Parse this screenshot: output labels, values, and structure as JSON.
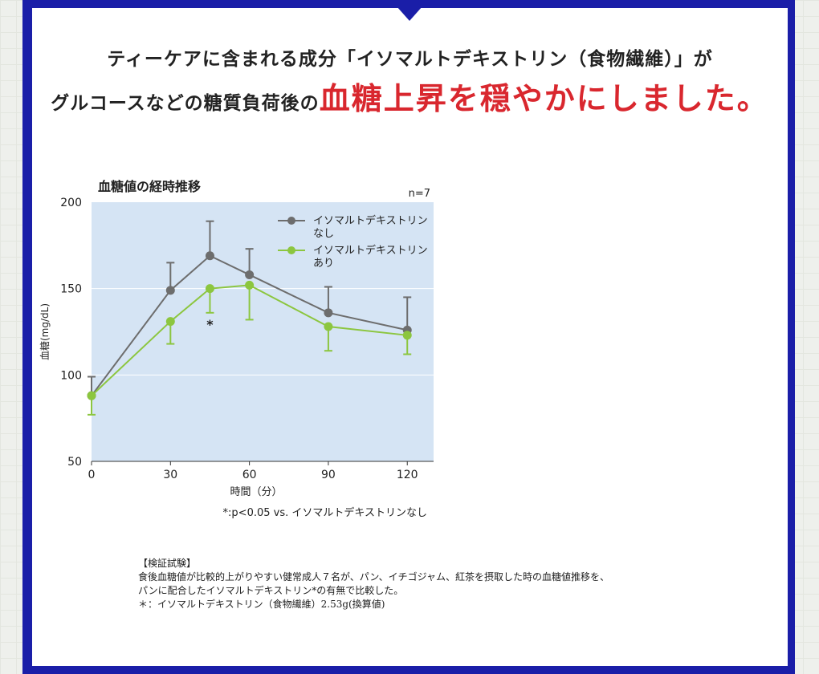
{
  "headline": {
    "line1": "ティーケアに含まれる成分「イソマルトデキストリン（食物繊維）」が",
    "line2_prefix": "グルコースなどの糖質負荷後の",
    "line2_highlight": "血糖上昇を穏やかにしました。"
  },
  "chart_data": {
    "type": "line",
    "title": "血糖値の経時推移",
    "annotation_n": "n=7",
    "xlabel": "時間（分）",
    "ylabel": "血糖(mg/dL)",
    "x": [
      0,
      30,
      45,
      60,
      90,
      120
    ],
    "xticks": [
      "0",
      "30",
      "60",
      "90",
      "120"
    ],
    "xtick_values": [
      0,
      30,
      60,
      90,
      120
    ],
    "yticks": [
      "50",
      "100",
      "150",
      "200"
    ],
    "ytick_values": [
      50,
      100,
      150,
      200
    ],
    "xlim": [
      0,
      130
    ],
    "ylim": [
      50,
      200
    ],
    "grid": "horizontal",
    "legend_position": "top-right",
    "series": [
      {
        "name": "イソマルトデキストリンなし",
        "name_lines": [
          "イソマルトデキストリン",
          "なし"
        ],
        "color": "#6d6d6d",
        "values": [
          88,
          149,
          169,
          158,
          136,
          126
        ],
        "error_upper": [
          99,
          165,
          189,
          173,
          151,
          145
        ],
        "error_lower": [
          null,
          null,
          null,
          null,
          null,
          null
        ]
      },
      {
        "name": "イソマルトデキストリンあり",
        "name_lines": [
          "イソマルトデキストリン",
          "あり"
        ],
        "color": "#8cc63f",
        "values": [
          88,
          131,
          150,
          152,
          128,
          123
        ],
        "error_upper": [
          null,
          null,
          null,
          null,
          null,
          null
        ],
        "error_lower": [
          77,
          118,
          136,
          132,
          114,
          112
        ]
      }
    ],
    "significance_marks": [
      {
        "x": 45,
        "label": "*"
      }
    ],
    "footnote": "*:p<0.05 vs. イソマルトデキストリンなし",
    "colors": {
      "plot_background": "#d5e4f4",
      "gridline": "#ffffff"
    }
  },
  "note": {
    "heading": "【検証試験】",
    "line1": "食後血糖値が比較的上がりやすい健常成人７名が、パン、イチゴジャム、紅茶を摂取した時の血糖値推移を、",
    "line2": "パンに配合したイソマルトデキストリン*の有無で比較した。",
    "line3": "＊：イソマルトデキストリン（食物繊維）2.53g(換算値)"
  }
}
